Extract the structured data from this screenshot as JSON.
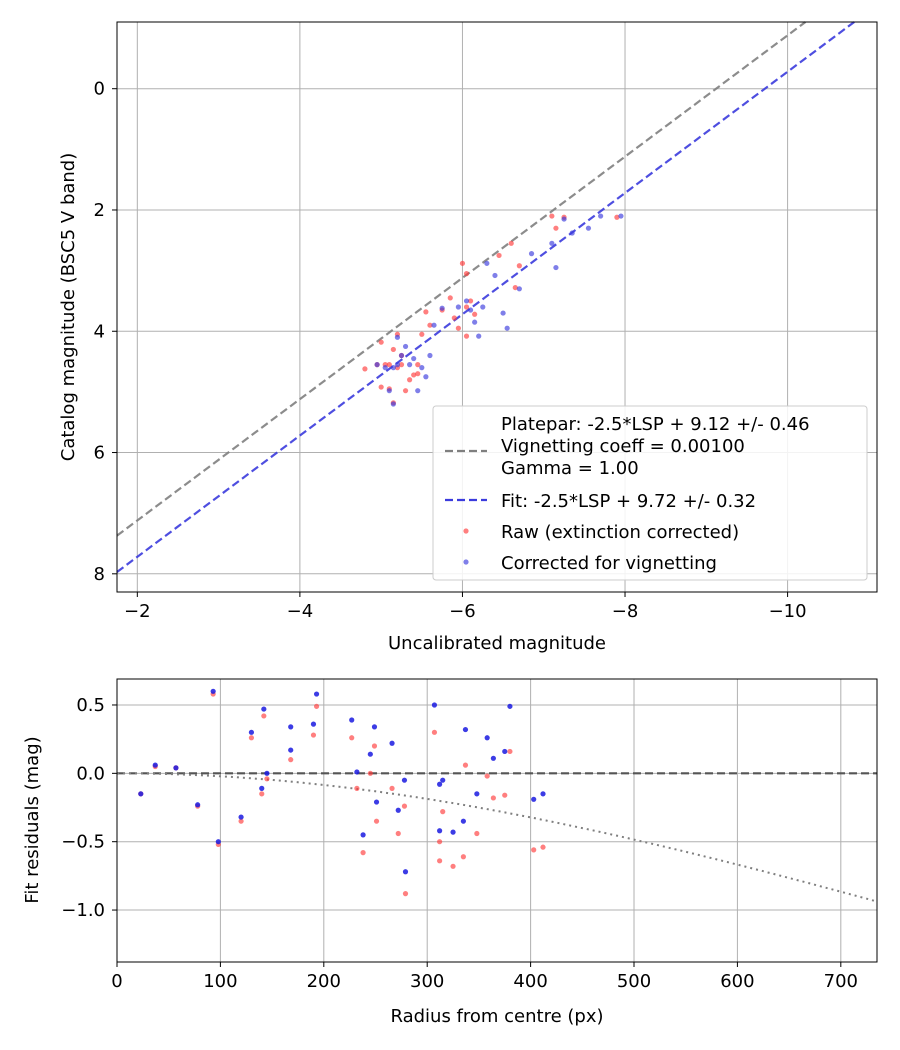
{
  "chart_data": [
    {
      "type": "scatter",
      "xlabel": "Uncalibrated magnitude",
      "ylabel": "Catalog magnitude (BSC5 V band)",
      "xlim": [
        -1.75,
        -11.1
      ],
      "ylim": [
        8.3,
        -1.1
      ],
      "x_inverted": true,
      "y_inverted": true,
      "xticks": [
        -2,
        -4,
        -6,
        -8,
        -10
      ],
      "xtick_labels": [
        "−2",
        "−4",
        "−6",
        "−8",
        "−10"
      ],
      "yticks": [
        0,
        2,
        4,
        6,
        8
      ],
      "ytick_labels": [
        "0",
        "2",
        "4",
        "6",
        "8"
      ],
      "grid": true,
      "legend_position": "lower-right",
      "lines": [
        {
          "name": "Platepar: -2.5*LSP + 9.12 +/- 0.46\nVignetting coeff = 0.00100\nGamma = 1.00",
          "intercept": 9.12,
          "color": "#7f7f7f",
          "style": "dashed"
        },
        {
          "name": "Fit: -2.5*LSP + 9.72 +/- 0.32",
          "intercept": 9.72,
          "color": "#3b3bdd",
          "style": "dashed"
        }
      ],
      "series": [
        {
          "name": "Raw (extinction corrected)",
          "color": "#ff3b3b",
          "points": [
            [
              -4.8,
              4.62
            ],
            [
              -4.95,
              4.55
            ],
            [
              -5.0,
              4.18
            ],
            [
              -5.0,
              4.92
            ],
            [
              -5.05,
              4.55
            ],
            [
              -5.1,
              4.95
            ],
            [
              -5.1,
              4.55
            ],
            [
              -5.15,
              4.3
            ],
            [
              -5.15,
              5.18
            ],
            [
              -5.2,
              4.05
            ],
            [
              -5.2,
              4.6
            ],
            [
              -5.25,
              4.55
            ],
            [
              -5.25,
              4.4
            ],
            [
              -5.3,
              4.98
            ],
            [
              -5.35,
              4.8
            ],
            [
              -5.4,
              4.72
            ],
            [
              -5.45,
              4.55
            ],
            [
              -5.45,
              4.7
            ],
            [
              -5.5,
              4.05
            ],
            [
              -5.55,
              3.68
            ],
            [
              -5.6,
              3.9
            ],
            [
              -5.75,
              3.65
            ],
            [
              -5.85,
              3.45
            ],
            [
              -5.9,
              3.78
            ],
            [
              -5.95,
              3.95
            ],
            [
              -6.0,
              2.88
            ],
            [
              -6.05,
              3.05
            ],
            [
              -6.05,
              3.6
            ],
            [
              -6.1,
              3.5
            ],
            [
              -6.15,
              3.72
            ],
            [
              -6.05,
              4.08
            ],
            [
              -6.45,
              2.75
            ],
            [
              -6.6,
              2.55
            ],
            [
              -6.7,
              2.92
            ],
            [
              -6.65,
              3.28
            ],
            [
              -7.1,
              2.1
            ],
            [
              -7.15,
              2.3
            ],
            [
              -7.25,
              2.12
            ],
            [
              -7.9,
              2.12
            ]
          ]
        },
        {
          "name": "Corrected for vignetting",
          "color": "#3b3bdd",
          "points": [
            [
              -4.95,
              4.55
            ],
            [
              -5.05,
              4.6
            ],
            [
              -5.1,
              4.98
            ],
            [
              -5.15,
              4.6
            ],
            [
              -5.15,
              5.2
            ],
            [
              -5.2,
              4.1
            ],
            [
              -5.2,
              4.55
            ],
            [
              -5.25,
              4.4
            ],
            [
              -5.3,
              4.25
            ],
            [
              -5.35,
              4.55
            ],
            [
              -5.4,
              4.45
            ],
            [
              -5.45,
              4.98
            ],
            [
              -5.55,
              4.75
            ],
            [
              -5.5,
              4.6
            ],
            [
              -5.6,
              4.4
            ],
            [
              -5.65,
              3.9
            ],
            [
              -5.75,
              3.62
            ],
            [
              -5.95,
              3.6
            ],
            [
              -6.05,
              3.5
            ],
            [
              -6.1,
              3.65
            ],
            [
              -6.15,
              3.85
            ],
            [
              -6.2,
              4.08
            ],
            [
              -6.25,
              3.6
            ],
            [
              -6.3,
              2.88
            ],
            [
              -6.4,
              3.08
            ],
            [
              -6.5,
              3.7
            ],
            [
              -6.55,
              3.95
            ],
            [
              -6.7,
              3.3
            ],
            [
              -6.85,
              2.72
            ],
            [
              -7.1,
              2.55
            ],
            [
              -7.15,
              2.95
            ],
            [
              -7.25,
              2.15
            ],
            [
              -7.35,
              2.38
            ],
            [
              -7.55,
              2.3
            ],
            [
              -7.7,
              2.1
            ],
            [
              -7.95,
              2.1
            ]
          ]
        }
      ]
    },
    {
      "type": "scatter",
      "xlabel": "Radius from centre (px)",
      "ylabel": "Fit residuals (mag)",
      "xlim": [
        0,
        735
      ],
      "ylim": [
        -1.38,
        0.69
      ],
      "xticks": [
        0,
        100,
        200,
        300,
        400,
        500,
        600,
        700
      ],
      "xtick_labels": [
        "0",
        "100",
        "200",
        "300",
        "400",
        "500",
        "600",
        "700"
      ],
      "yticks": [
        0.5,
        0.0,
        -0.5,
        -1.0
      ],
      "ytick_labels": [
        "0.5",
        "0.0",
        "−0.5",
        "−1.0"
      ],
      "grid": true,
      "lines": [
        {
          "kind": "zero",
          "color": "#555555",
          "style": "dashed"
        },
        {
          "kind": "vignetting",
          "coeff": 0.001,
          "color": "#7f7f7f",
          "style": "dotted"
        }
      ],
      "series": [
        {
          "name": "Raw (extinction corrected)",
          "color": "#ff3b3b",
          "points": [
            [
              23,
              -0.15
            ],
            [
              37,
              0.05
            ],
            [
              57,
              0.04
            ],
            [
              78,
              -0.24
            ],
            [
              93,
              0.58
            ],
            [
              98,
              -0.52
            ],
            [
              120,
              -0.35
            ],
            [
              130,
              0.26
            ],
            [
              140,
              -0.15
            ],
            [
              142,
              0.42
            ],
            [
              145,
              -0.04
            ],
            [
              168,
              0.1
            ],
            [
              190,
              0.28
            ],
            [
              193,
              0.49
            ],
            [
              227,
              0.26
            ],
            [
              232,
              -0.11
            ],
            [
              238,
              -0.58
            ],
            [
              245,
              0.0
            ],
            [
              249,
              0.2
            ],
            [
              251,
              -0.35
            ],
            [
              266,
              -0.11
            ],
            [
              272,
              -0.44
            ],
            [
              278,
              -0.24
            ],
            [
              279,
              -0.88
            ],
            [
              307,
              0.3
            ],
            [
              312,
              -0.64
            ],
            [
              312,
              -0.5
            ],
            [
              315,
              -0.28
            ],
            [
              325,
              -0.68
            ],
            [
              335,
              -0.61
            ],
            [
              337,
              0.06
            ],
            [
              348,
              -0.44
            ],
            [
              358,
              -0.02
            ],
            [
              364,
              -0.18
            ],
            [
              375,
              -0.16
            ],
            [
              380,
              0.16
            ],
            [
              403,
              -0.56
            ],
            [
              412,
              -0.54
            ]
          ]
        },
        {
          "name": "Corrected for vignetting",
          "color": "#1a1ae0",
          "points": [
            [
              23,
              -0.15
            ],
            [
              37,
              0.06
            ],
            [
              57,
              0.04
            ],
            [
              78,
              -0.23
            ],
            [
              93,
              0.6
            ],
            [
              98,
              -0.5
            ],
            [
              120,
              -0.32
            ],
            [
              130,
              0.3
            ],
            [
              140,
              -0.11
            ],
            [
              142,
              0.47
            ],
            [
              145,
              0.0
            ],
            [
              168,
              0.34
            ],
            [
              168,
              0.17
            ],
            [
              190,
              0.36
            ],
            [
              193,
              0.58
            ],
            [
              227,
              0.39
            ],
            [
              232,
              0.01
            ],
            [
              238,
              -0.45
            ],
            [
              245,
              0.14
            ],
            [
              249,
              0.34
            ],
            [
              251,
              -0.21
            ],
            [
              266,
              0.22
            ],
            [
              272,
              -0.27
            ],
            [
              278,
              -0.05
            ],
            [
              279,
              -0.72
            ],
            [
              307,
              0.5
            ],
            [
              312,
              -0.08
            ],
            [
              312,
              -0.42
            ],
            [
              315,
              -0.05
            ],
            [
              325,
              -0.43
            ],
            [
              335,
              -0.35
            ],
            [
              337,
              0.32
            ],
            [
              348,
              -0.15
            ],
            [
              358,
              0.26
            ],
            [
              364,
              0.11
            ],
            [
              375,
              0.16
            ],
            [
              380,
              0.49
            ],
            [
              403,
              -0.19
            ],
            [
              412,
              -0.15
            ]
          ]
        }
      ]
    }
  ]
}
